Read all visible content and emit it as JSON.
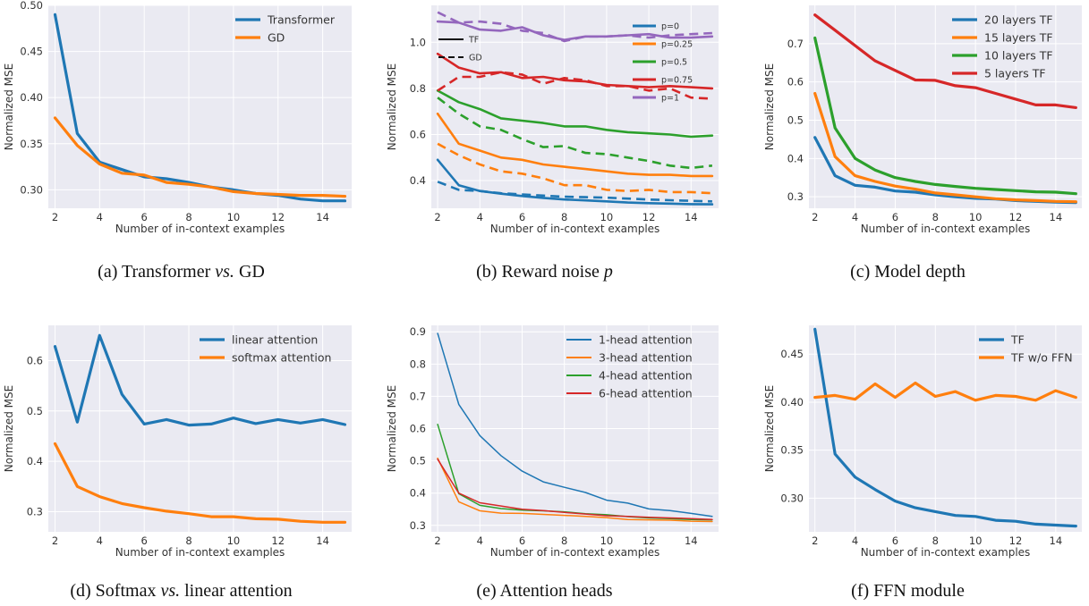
{
  "captions": {
    "a": {
      "pre": "(a) Transformer ",
      "em": "vs.",
      "post": " GD"
    },
    "b": {
      "pre": "(b) Reward noise ",
      "em": "p",
      "post": ""
    },
    "c": {
      "pre": "(c) Model depth",
      "em": "",
      "post": ""
    },
    "d": {
      "pre": "(d) Softmax ",
      "em": "vs.",
      "post": " linear attention"
    },
    "e": {
      "pre": "(e) Attention heads",
      "em": "",
      "post": ""
    },
    "f": {
      "pre": "(f) FFN module",
      "em": "",
      "post": ""
    }
  },
  "chart_data": [
    {
      "id": "a",
      "type": "line",
      "xlabel": "Number of in-context examples",
      "ylabel": "Normalized MSE",
      "xlim": [
        1.7,
        15.3
      ],
      "ylim": [
        0.28,
        0.5
      ],
      "xticks": [
        2,
        4,
        6,
        8,
        10,
        12,
        14
      ],
      "yticks": [
        0.3,
        0.35,
        0.4,
        0.45,
        0.5
      ],
      "ytick_labels": [
        "0.30",
        "0.35",
        "0.40",
        "0.45",
        "0.50"
      ],
      "grid": true,
      "legend_position": "top-right",
      "x": [
        2,
        3,
        4,
        5,
        6,
        7,
        8,
        9,
        10,
        11,
        12,
        13,
        14,
        15
      ],
      "series": [
        {
          "name": "Transformer",
          "color": "#1f77b4",
          "width": 3.2,
          "dash": "solid",
          "values": [
            0.49,
            0.361,
            0.33,
            0.322,
            0.314,
            0.312,
            0.308,
            0.303,
            0.3,
            0.296,
            0.294,
            0.29,
            0.288,
            0.288
          ]
        },
        {
          "name": "GD",
          "color": "#ff7f0e",
          "width": 3.2,
          "dash": "solid",
          "values": [
            0.378,
            0.348,
            0.328,
            0.318,
            0.316,
            0.308,
            0.306,
            0.303,
            0.298,
            0.296,
            0.295,
            0.294,
            0.294,
            0.293
          ]
        }
      ]
    },
    {
      "id": "b",
      "type": "line",
      "xlabel": "Number of in-context examples",
      "ylabel": "Normalized MSE",
      "xlim": [
        1.7,
        15.3
      ],
      "ylim": [
        0.28,
        1.16
      ],
      "xticks": [
        2,
        4,
        6,
        8,
        10,
        12,
        14
      ],
      "yticks": [
        0.4,
        0.6,
        0.8,
        1.0
      ],
      "ytick_labels": [
        "0.4",
        "0.6",
        "0.8",
        "1.0"
      ],
      "grid": true,
      "legend_position": "top-right",
      "style_legend": [
        {
          "label": "TF",
          "dash": "solid"
        },
        {
          "label": "GD",
          "dash": "dashed"
        }
      ],
      "x": [
        2,
        3,
        4,
        5,
        6,
        7,
        8,
        9,
        10,
        11,
        12,
        13,
        14,
        15
      ],
      "series": [
        {
          "name": "p=0",
          "color": "#1f77b4",
          "width": 2.6,
          "dash": "solid",
          "values": [
            0.49,
            0.38,
            0.355,
            0.343,
            0.333,
            0.325,
            0.318,
            0.314,
            0.31,
            0.305,
            0.302,
            0.3,
            0.298,
            0.297
          ]
        },
        {
          "name": "",
          "color": "#1f77b4",
          "width": 2.6,
          "dash": "dashed",
          "values": [
            0.395,
            0.36,
            0.355,
            0.345,
            0.34,
            0.335,
            0.33,
            0.328,
            0.326,
            0.322,
            0.318,
            0.315,
            0.312,
            0.31
          ]
        },
        {
          "name": "p=0.25",
          "color": "#ff7f0e",
          "width": 2.6,
          "dash": "solid",
          "values": [
            0.69,
            0.56,
            0.53,
            0.5,
            0.49,
            0.47,
            0.46,
            0.45,
            0.44,
            0.43,
            0.425,
            0.425,
            0.42,
            0.42
          ]
        },
        {
          "name": "",
          "color": "#ff7f0e",
          "width": 2.6,
          "dash": "dashed",
          "values": [
            0.56,
            0.51,
            0.47,
            0.44,
            0.43,
            0.41,
            0.38,
            0.38,
            0.36,
            0.355,
            0.36,
            0.35,
            0.35,
            0.345
          ]
        },
        {
          "name": "p=0.5",
          "color": "#2ca02c",
          "width": 2.6,
          "dash": "solid",
          "values": [
            0.79,
            0.74,
            0.71,
            0.67,
            0.66,
            0.65,
            0.635,
            0.635,
            0.62,
            0.61,
            0.605,
            0.6,
            0.59,
            0.595
          ]
        },
        {
          "name": "",
          "color": "#2ca02c",
          "width": 2.6,
          "dash": "dashed",
          "values": [
            0.76,
            0.69,
            0.635,
            0.62,
            0.58,
            0.545,
            0.55,
            0.52,
            0.515,
            0.5,
            0.485,
            0.465,
            0.455,
            0.465
          ]
        },
        {
          "name": "p=0.75",
          "color": "#d62728",
          "width": 2.6,
          "dash": "solid",
          "values": [
            0.95,
            0.89,
            0.865,
            0.87,
            0.845,
            0.85,
            0.835,
            0.83,
            0.815,
            0.81,
            0.805,
            0.81,
            0.805,
            0.8
          ]
        },
        {
          "name": "",
          "color": "#d62728",
          "width": 2.6,
          "dash": "dashed",
          "values": [
            0.79,
            0.85,
            0.85,
            0.87,
            0.86,
            0.82,
            0.845,
            0.835,
            0.81,
            0.81,
            0.79,
            0.8,
            0.76,
            0.755
          ]
        },
        {
          "name": "p=1",
          "color": "#9467bd",
          "width": 2.6,
          "dash": "solid",
          "values": [
            1.09,
            1.085,
            1.055,
            1.05,
            1.065,
            1.03,
            1.01,
            1.025,
            1.025,
            1.03,
            1.035,
            1.02,
            1.02,
            1.025
          ]
        },
        {
          "name": "",
          "color": "#9467bd",
          "width": 2.6,
          "dash": "dashed",
          "values": [
            1.13,
            1.085,
            1.09,
            1.08,
            1.05,
            1.04,
            1.005,
            1.025,
            1.025,
            1.03,
            1.02,
            1.03,
            1.035,
            1.04
          ]
        }
      ]
    },
    {
      "id": "c",
      "type": "line",
      "xlabel": "Number of in-context examples",
      "ylabel": "Normalized MSE",
      "xlim": [
        1.7,
        15.3
      ],
      "ylim": [
        0.27,
        0.8
      ],
      "xticks": [
        2,
        4,
        6,
        8,
        10,
        12,
        14
      ],
      "yticks": [
        0.3,
        0.4,
        0.5,
        0.6,
        0.7
      ],
      "ytick_labels": [
        "0.3",
        "0.4",
        "0.5",
        "0.6",
        "0.7"
      ],
      "grid": true,
      "legend_position": "top-right",
      "x": [
        2,
        3,
        4,
        5,
        6,
        7,
        8,
        9,
        10,
        11,
        12,
        13,
        14,
        15
      ],
      "series": [
        {
          "name": "20 layers TF",
          "color": "#1f77b4",
          "width": 3.2,
          "dash": "solid",
          "values": [
            0.455,
            0.355,
            0.33,
            0.325,
            0.315,
            0.312,
            0.305,
            0.3,
            0.296,
            0.294,
            0.29,
            0.288,
            0.286,
            0.285
          ]
        },
        {
          "name": "15 layers TF",
          "color": "#ff7f0e",
          "width": 3.2,
          "dash": "solid",
          "values": [
            0.57,
            0.405,
            0.355,
            0.34,
            0.328,
            0.32,
            0.31,
            0.305,
            0.3,
            0.295,
            0.292,
            0.29,
            0.288,
            0.287
          ]
        },
        {
          "name": "10 layers TF",
          "color": "#2ca02c",
          "width": 3.2,
          "dash": "solid",
          "values": [
            0.715,
            0.48,
            0.4,
            0.37,
            0.35,
            0.34,
            0.332,
            0.327,
            0.322,
            0.319,
            0.316,
            0.313,
            0.312,
            0.308
          ]
        },
        {
          "name": "5 layers TF",
          "color": "#d62728",
          "width": 3.2,
          "dash": "solid",
          "values": [
            0.775,
            0.735,
            0.695,
            0.655,
            0.63,
            0.605,
            0.604,
            0.59,
            0.585,
            0.57,
            0.555,
            0.54,
            0.54,
            0.533
          ]
        }
      ]
    },
    {
      "id": "d",
      "type": "line",
      "xlabel": "Number of in-context examples",
      "ylabel": "Normalized MSE",
      "xlim": [
        1.7,
        15.3
      ],
      "ylim": [
        0.26,
        0.67
      ],
      "xticks": [
        2,
        4,
        6,
        8,
        10,
        12,
        14
      ],
      "yticks": [
        0.3,
        0.4,
        0.5,
        0.6
      ],
      "ytick_labels": [
        "0.3",
        "0.4",
        "0.5",
        "0.6"
      ],
      "grid": true,
      "legend_position": "top-right",
      "x": [
        2,
        3,
        4,
        5,
        6,
        7,
        8,
        9,
        10,
        11,
        12,
        13,
        14,
        15
      ],
      "series": [
        {
          "name": "linear attention",
          "color": "#1f77b4",
          "width": 3.2,
          "dash": "solid",
          "values": [
            0.628,
            0.478,
            0.65,
            0.533,
            0.474,
            0.483,
            0.472,
            0.474,
            0.486,
            0.475,
            0.483,
            0.476,
            0.483,
            0.473
          ]
        },
        {
          "name": "softmax attention",
          "color": "#ff7f0e",
          "width": 3.2,
          "dash": "solid",
          "values": [
            0.435,
            0.35,
            0.33,
            0.316,
            0.308,
            0.301,
            0.296,
            0.29,
            0.29,
            0.286,
            0.285,
            0.281,
            0.279,
            0.279
          ]
        }
      ]
    },
    {
      "id": "e",
      "type": "line",
      "xlabel": "Number of in-context examples",
      "ylabel": "Normalized MSE",
      "xlim": [
        1.7,
        15.3
      ],
      "ylim": [
        0.28,
        0.92
      ],
      "xticks": [
        2,
        4,
        6,
        8,
        10,
        12,
        14
      ],
      "yticks": [
        0.3,
        0.4,
        0.5,
        0.6,
        0.7,
        0.8,
        0.9
      ],
      "ytick_labels": [
        "0.3",
        "0.4",
        "0.5",
        "0.6",
        "0.7",
        "0.8",
        "0.9"
      ],
      "grid": true,
      "legend_position": "top-right",
      "x": [
        2,
        3,
        4,
        5,
        6,
        7,
        8,
        9,
        10,
        11,
        12,
        13,
        14,
        15
      ],
      "series": [
        {
          "name": "1-head attention",
          "color": "#1f77b4",
          "width": 1.5,
          "dash": "solid",
          "values": [
            0.895,
            0.675,
            0.578,
            0.516,
            0.468,
            0.435,
            0.418,
            0.402,
            0.378,
            0.369,
            0.351,
            0.346,
            0.337,
            0.328
          ]
        },
        {
          "name": "3-head attention",
          "color": "#ff7f0e",
          "width": 1.5,
          "dash": "solid",
          "values": [
            0.508,
            0.373,
            0.345,
            0.338,
            0.337,
            0.334,
            0.331,
            0.328,
            0.324,
            0.318,
            0.317,
            0.316,
            0.313,
            0.312
          ]
        },
        {
          "name": "4-head attention",
          "color": "#2ca02c",
          "width": 1.5,
          "dash": "solid",
          "values": [
            0.613,
            0.398,
            0.362,
            0.352,
            0.347,
            0.345,
            0.342,
            0.336,
            0.333,
            0.327,
            0.323,
            0.321,
            0.318,
            0.317
          ]
        },
        {
          "name": "6-head attention",
          "color": "#d62728",
          "width": 1.5,
          "dash": "solid",
          "values": [
            0.505,
            0.4,
            0.37,
            0.36,
            0.35,
            0.346,
            0.34,
            0.335,
            0.33,
            0.328,
            0.325,
            0.323,
            0.321,
            0.318
          ]
        }
      ]
    },
    {
      "id": "f",
      "type": "line",
      "xlabel": "Number of in-context examples",
      "ylabel": "Normalized MSE",
      "xlim": [
        1.7,
        15.3
      ],
      "ylim": [
        0.265,
        0.48
      ],
      "xticks": [
        2,
        4,
        6,
        8,
        10,
        12,
        14
      ],
      "yticks": [
        0.3,
        0.35,
        0.4,
        0.45
      ],
      "ytick_labels": [
        "0.30",
        "0.35",
        "0.40",
        "0.45"
      ],
      "grid": true,
      "legend_position": "top-right",
      "x": [
        2,
        3,
        4,
        5,
        6,
        7,
        8,
        9,
        10,
        11,
        12,
        13,
        14,
        15
      ],
      "series": [
        {
          "name": "TF",
          "color": "#1f77b4",
          "width": 3.2,
          "dash": "solid",
          "values": [
            0.476,
            0.346,
            0.322,
            0.309,
            0.297,
            0.29,
            0.286,
            0.282,
            0.281,
            0.277,
            0.276,
            0.273,
            0.272,
            0.271
          ]
        },
        {
          "name": "TF w/o FFN",
          "color": "#ff7f0e",
          "width": 3.2,
          "dash": "solid",
          "values": [
            0.405,
            0.407,
            0.403,
            0.419,
            0.405,
            0.42,
            0.406,
            0.411,
            0.402,
            0.407,
            0.406,
            0.402,
            0.412,
            0.405
          ]
        }
      ]
    }
  ]
}
